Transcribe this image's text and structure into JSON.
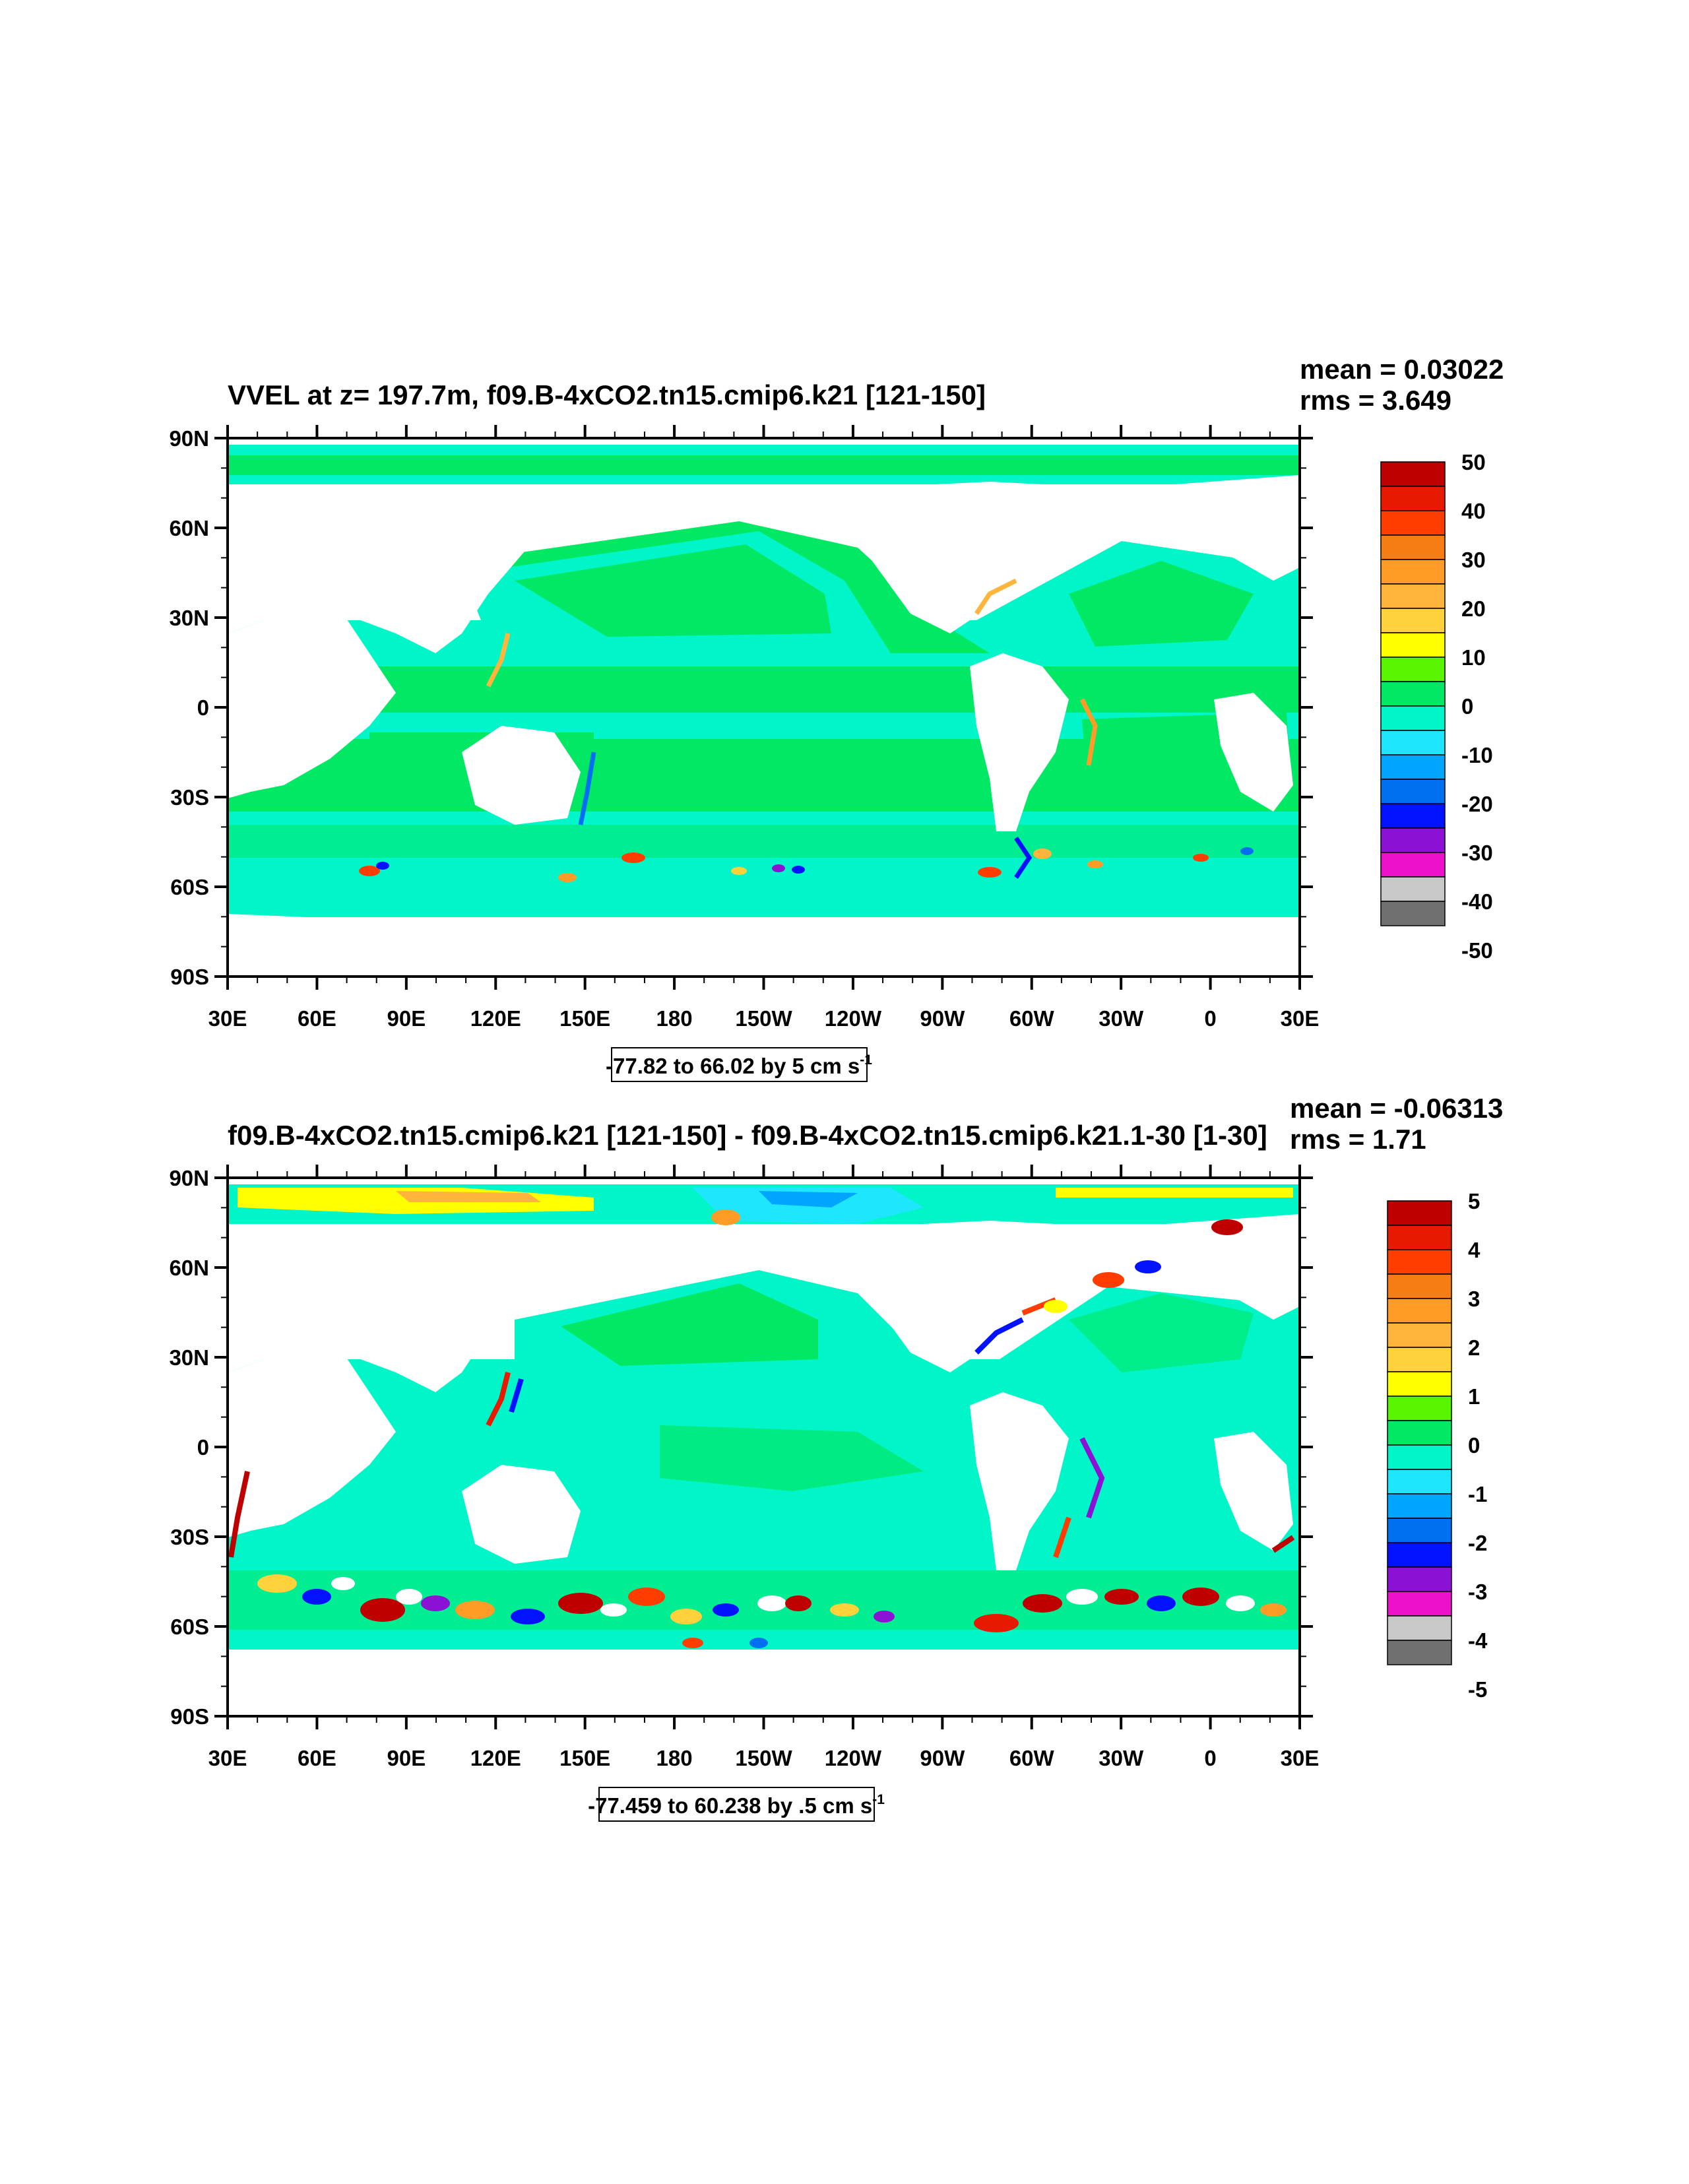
{
  "panels": [
    {
      "title": "VVEL at z= 197.7m, f09.B-4xCO2.tn15.cmip6.k21 [121-150]",
      "mean": "mean = 0.03022",
      "rms": "rms = 3.649",
      "info_text": "-77.82 to 66.02 by 5 cm s",
      "info_sup": "-1",
      "colorbar_labels": [
        "50",
        "40",
        "30",
        "20",
        "10",
        "0",
        "-10",
        "-20",
        "-30",
        "-40",
        "-50"
      ]
    },
    {
      "title": "f09.B-4xCO2.tn15.cmip6.k21 [121-150] - f09.B-4xCO2.tn15.cmip6.k21.1-30 [1-30]",
      "mean": "mean = -0.06313",
      "rms": "rms = 1.71",
      "info_text": "-77.459 to 60.238 by .5 cm s",
      "info_sup": "-1",
      "colorbar_labels": [
        "5",
        "4",
        "3",
        "2",
        "1",
        "0",
        "-1",
        "-2",
        "-3",
        "-4",
        "-5"
      ]
    }
  ],
  "axes": {
    "lat_labels": [
      "90N",
      "60N",
      "30N",
      "0",
      "30S",
      "60S",
      "90S"
    ],
    "lon_labels": [
      "30E",
      "60E",
      "90E",
      "120E",
      "150E",
      "180",
      "150W",
      "120W",
      "90W",
      "60W",
      "30W",
      "0",
      "30E"
    ]
  },
  "palette": [
    "#bf0000",
    "#e61a00",
    "#ff3d00",
    "#f57d13",
    "#ff9c28",
    "#ffb43c",
    "#ffd23c",
    "#ffff00",
    "#59f500",
    "#00e864",
    "#00f5c8",
    "#1ee6ff",
    "#00a5ff",
    "#0070f0",
    "#0012ff",
    "#8b11d4",
    "#ee11cc",
    "#c8c8c8",
    "#707070"
  ],
  "colors": {
    "ocean": "#00f5c8",
    "ocean_alt": "#00e864",
    "land": "#ffffff",
    "frame": "#000000"
  }
}
